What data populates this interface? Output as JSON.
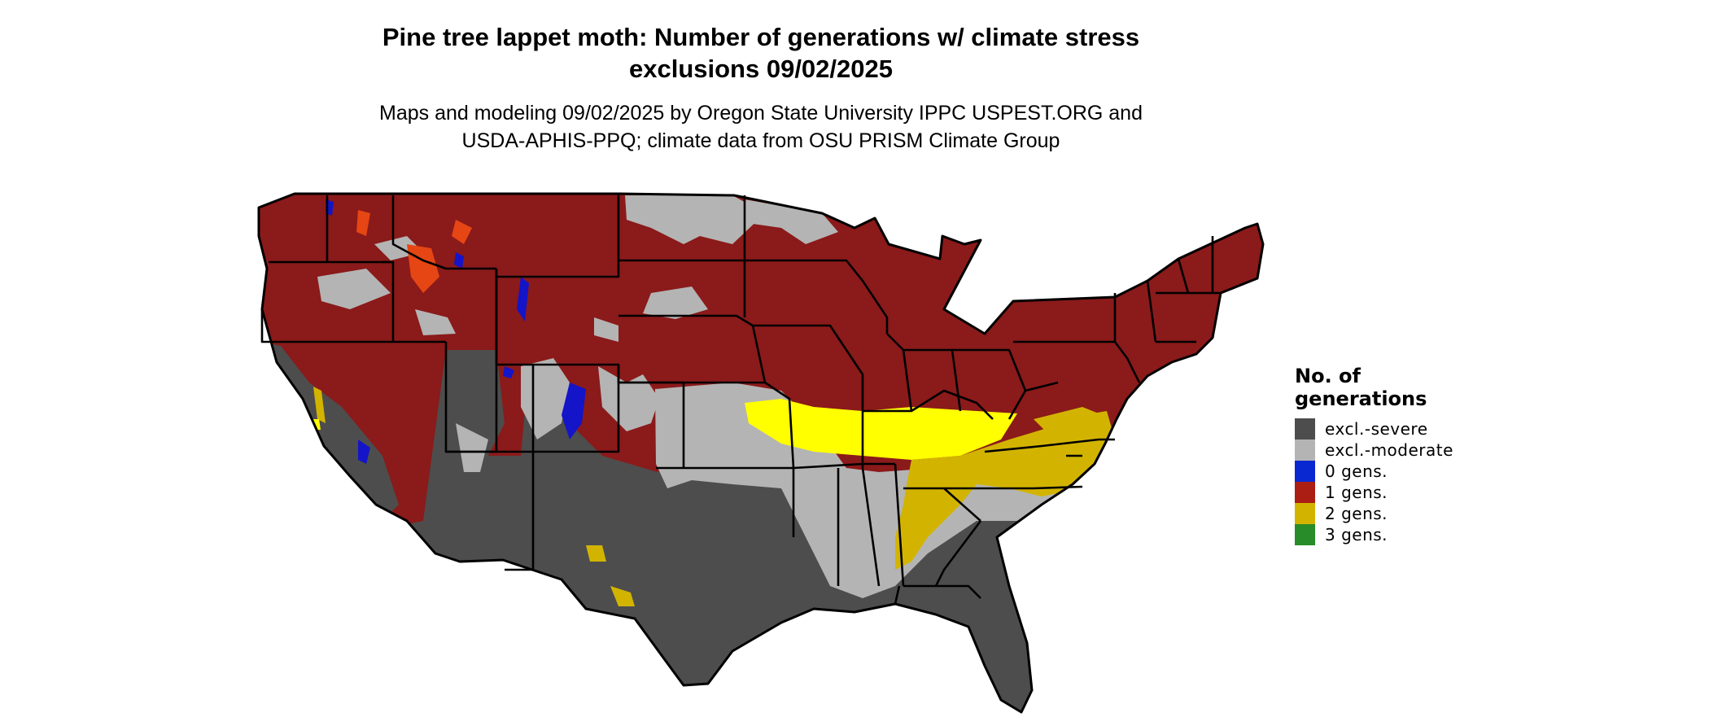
{
  "title": "Pine tree lappet moth: Number of generations w/ climate stress exclusions 09/02/2025",
  "title_lines": [
    "Pine tree lappet moth: Number of generations w/ climate stress",
    "exclusions 09/02/2025"
  ],
  "subtitle_lines": [
    "Maps and modeling 09/02/2025 by Oregon State University IPPC USPEST.ORG and",
    "USDA-APHIS-PPQ; climate data from OSU PRISM Climate Group"
  ],
  "legend": {
    "title_lines": [
      "No. of",
      "generations"
    ],
    "items": [
      {
        "label": "excl.-severe",
        "color": "#4d4d4d"
      },
      {
        "label": "excl.-moderate",
        "color": "#b4b4b4"
      },
      {
        "label": "0 gens.",
        "color": "#0a28d2"
      },
      {
        "label": "1 gens.",
        "color": "#aa1e14"
      },
      {
        "label": "2 gens.",
        "color": "#d2b400"
      },
      {
        "label": "3 gens.",
        "color": "#288c28"
      }
    ]
  },
  "map_colors": {
    "one_gen_map": "#8b1a1a",
    "severe": "#4d4d4d",
    "moderate": "#b4b4b4",
    "two_gen": "#d2b400",
    "two_gen_bright": "#ffff00",
    "zero_gen": "#1414c8",
    "orange_patch": "#e64614",
    "borders": "#000000"
  }
}
